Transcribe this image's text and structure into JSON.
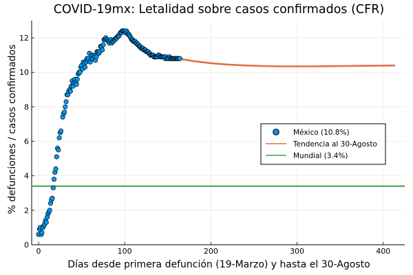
{
  "chart_data": {
    "type": "scatter",
    "title": "COVID-19mx: Letalidad sobre casos confirmados (CFR)",
    "xlabel": "Días desde primera defunción (19-Marzo) y hasta el 30-Agosto",
    "ylabel": "% defunciones / casos confirmados",
    "xlim": [
      -8,
      425
    ],
    "ylim": [
      0,
      13
    ],
    "x_ticks": [
      0,
      100,
      200,
      300,
      400
    ],
    "y_ticks": [
      0,
      2,
      4,
      6,
      8,
      10,
      12
    ],
    "grid": true,
    "legend_position": "right",
    "series": [
      {
        "name": "México (10.8%)",
        "kind": "scatter",
        "color": "#009AFA",
        "points": [
          [
            0,
            0.6
          ],
          [
            1,
            0.9
          ],
          [
            2,
            1.0
          ],
          [
            3,
            0.6
          ],
          [
            4,
            0.7
          ],
          [
            5,
            1.0
          ],
          [
            6,
            1.1
          ],
          [
            7,
            1.2
          ],
          [
            8,
            1.4
          ],
          [
            9,
            1.3
          ],
          [
            10,
            1.6
          ],
          [
            11,
            1.8
          ],
          [
            12,
            1.9
          ],
          [
            13,
            2.0
          ],
          [
            14,
            2.4
          ],
          [
            15,
            2.6
          ],
          [
            16,
            2.7
          ],
          [
            17,
            3.3
          ],
          [
            18,
            3.8
          ],
          [
            19,
            4.2
          ],
          [
            20,
            4.4
          ],
          [
            21,
            5.1
          ],
          [
            22,
            5.6
          ],
          [
            23,
            5.5
          ],
          [
            24,
            6.2
          ],
          [
            25,
            6.5
          ],
          [
            26,
            6.6
          ],
          [
            28,
            7.4
          ],
          [
            29,
            7.6
          ],
          [
            30,
            7.7
          ],
          [
            31,
            8.0
          ],
          [
            32,
            8.3
          ],
          [
            33,
            8.7
          ],
          [
            34,
            8.7
          ],
          [
            35,
            8.9
          ],
          [
            36,
            9.0
          ],
          [
            37,
            8.9
          ],
          [
            38,
            9.2
          ],
          [
            39,
            9.5
          ],
          [
            40,
            9.2
          ],
          [
            41,
            9.4
          ],
          [
            42,
            9.6
          ],
          [
            43,
            9.4
          ],
          [
            44,
            9.3
          ],
          [
            45,
            9.6
          ],
          [
            46,
            9.9
          ],
          [
            47,
            10.0
          ],
          [
            48,
            10.0
          ],
          [
            49,
            10.3
          ],
          [
            50,
            10.4
          ],
          [
            51,
            10.2
          ],
          [
            52,
            10.6
          ],
          [
            53,
            10.5
          ],
          [
            54,
            10.3
          ],
          [
            55,
            10.6
          ],
          [
            56,
            10.8
          ],
          [
            57,
            10.7
          ],
          [
            58,
            10.8
          ],
          [
            59,
            11.1
          ],
          [
            60,
            10.6
          ],
          [
            61,
            10.8
          ],
          [
            62,
            11.0
          ],
          [
            63,
            10.8
          ],
          [
            64,
            11.0
          ],
          [
            65,
            10.9
          ],
          [
            66,
            10.7
          ],
          [
            67,
            10.9
          ],
          [
            68,
            11.2
          ],
          [
            69,
            11.2
          ],
          [
            70,
            11.1
          ],
          [
            71,
            11.2
          ],
          [
            72,
            11.5
          ],
          [
            73,
            11.5
          ],
          [
            74,
            11.3
          ],
          [
            75,
            11.6
          ],
          [
            76,
            11.9
          ],
          [
            77,
            11.9
          ],
          [
            78,
            12.0
          ],
          [
            79,
            11.9
          ],
          [
            80,
            11.9
          ],
          [
            81,
            11.8
          ],
          [
            82,
            11.7
          ],
          [
            83,
            11.8
          ],
          [
            84,
            11.9
          ],
          [
            85,
            11.7
          ],
          [
            86,
            11.8
          ],
          [
            87,
            11.8
          ],
          [
            88,
            11.9
          ],
          [
            89,
            11.9
          ],
          [
            90,
            12.0
          ],
          [
            91,
            12.0
          ],
          [
            92,
            12.1
          ],
          [
            93,
            12.1
          ],
          [
            94,
            12.2
          ],
          [
            95,
            12.3
          ],
          [
            96,
            12.3
          ],
          [
            97,
            12.4
          ],
          [
            98,
            12.4
          ],
          [
            99,
            12.4
          ],
          [
            100,
            12.4
          ],
          [
            101,
            12.3
          ],
          [
            102,
            12.4
          ],
          [
            103,
            12.3
          ],
          [
            104,
            12.2
          ],
          [
            105,
            12.2
          ],
          [
            106,
            12.1
          ],
          [
            107,
            12.0
          ],
          [
            108,
            11.9
          ],
          [
            109,
            11.9
          ],
          [
            110,
            11.8
          ],
          [
            111,
            11.8
          ],
          [
            112,
            11.8
          ],
          [
            113,
            11.7
          ],
          [
            114,
            11.7
          ],
          [
            115,
            11.6
          ],
          [
            116,
            11.6
          ],
          [
            117,
            11.5
          ],
          [
            118,
            11.5
          ],
          [
            119,
            11.4
          ],
          [
            120,
            11.4
          ],
          [
            121,
            11.4
          ],
          [
            122,
            11.3
          ],
          [
            123,
            11.3
          ],
          [
            124,
            11.3
          ],
          [
            125,
            11.2
          ],
          [
            126,
            11.2
          ],
          [
            127,
            11.2
          ],
          [
            128,
            11.1
          ],
          [
            129,
            11.1
          ],
          [
            130,
            11.0
          ],
          [
            131,
            11.0
          ],
          [
            132,
            11.0
          ],
          [
            133,
            11.0
          ],
          [
            134,
            10.9
          ],
          [
            135,
            10.9
          ],
          [
            136,
            10.9
          ],
          [
            137,
            10.9
          ],
          [
            138,
            10.9
          ],
          [
            139,
            11.0
          ],
          [
            140,
            11.0
          ],
          [
            141,
            10.9
          ],
          [
            142,
            10.9
          ],
          [
            143,
            10.9
          ],
          [
            144,
            10.9
          ],
          [
            145,
            10.9
          ],
          [
            146,
            10.9
          ],
          [
            147,
            10.8
          ],
          [
            148,
            10.9
          ],
          [
            149,
            10.8
          ],
          [
            150,
            10.8
          ],
          [
            151,
            10.8
          ],
          [
            152,
            10.9
          ],
          [
            153,
            10.8
          ],
          [
            154,
            10.8
          ],
          [
            155,
            10.8
          ],
          [
            156,
            10.8
          ],
          [
            157,
            10.8
          ],
          [
            158,
            10.8
          ],
          [
            159,
            10.8
          ],
          [
            160,
            10.8
          ],
          [
            161,
            10.8
          ],
          [
            162,
            10.8
          ],
          [
            163,
            10.8
          ],
          [
            164,
            10.8
          ]
        ]
      },
      {
        "name": "Tendencia al 30-Agosto",
        "kind": "line",
        "color": "#E26F46",
        "points": [
          [
            164,
            10.78
          ],
          [
            180,
            10.65
          ],
          [
            200,
            10.53
          ],
          [
            220,
            10.45
          ],
          [
            240,
            10.4
          ],
          [
            260,
            10.37
          ],
          [
            280,
            10.35
          ],
          [
            300,
            10.35
          ],
          [
            320,
            10.35
          ],
          [
            340,
            10.36
          ],
          [
            360,
            10.37
          ],
          [
            380,
            10.38
          ],
          [
            400,
            10.39
          ],
          [
            413,
            10.4
          ]
        ]
      },
      {
        "name": "Mundial (3.4%)",
        "kind": "hline",
        "color": "#3DA44D",
        "value": 3.4
      }
    ]
  }
}
